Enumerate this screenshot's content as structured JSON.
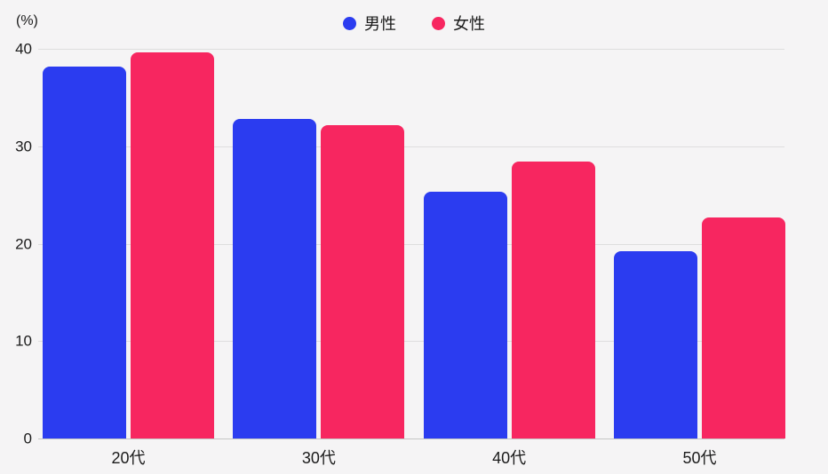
{
  "chart_data": {
    "type": "bar",
    "title": "",
    "categories": [
      "20代",
      "30代",
      "40代",
      "50代"
    ],
    "series": [
      {
        "name": "男性",
        "color": "#2b3cf0",
        "values": [
          38.2,
          32.8,
          25.3,
          19.2
        ]
      },
      {
        "name": "女性",
        "color": "#f72660",
        "values": [
          39.6,
          32.2,
          28.4,
          22.7
        ]
      }
    ],
    "xlabel": "",
    "ylabel": "(%)",
    "yticks": [
      0,
      10,
      20,
      30,
      40
    ],
    "ylim": [
      0,
      40
    ],
    "grid": true,
    "legend_position": "top-center",
    "background_color": "#f5f4f5",
    "gridline_color": "#dedede",
    "axisline_color": "#c6c6c6",
    "text_color": "#1b1b1b"
  }
}
